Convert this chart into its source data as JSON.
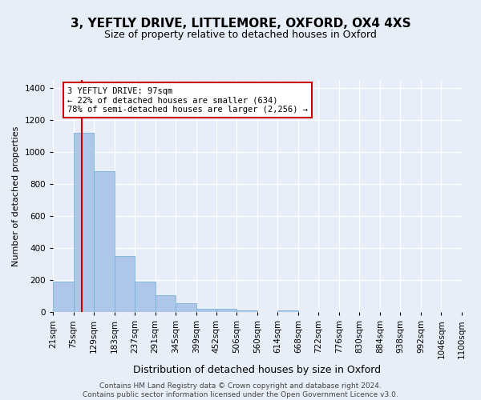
{
  "title": "3, YEFTLY DRIVE, LITTLEMORE, OXFORD, OX4 4XS",
  "subtitle": "Size of property relative to detached houses in Oxford",
  "xlabel": "Distribution of detached houses by size in Oxford",
  "ylabel": "Number of detached properties",
  "footer_line1": "Contains HM Land Registry data © Crown copyright and database right 2024.",
  "footer_line2": "Contains public sector information licensed under the Open Government Licence v3.0.",
  "bin_edges": [
    21,
    75,
    129,
    183,
    237,
    291,
    345,
    399,
    452,
    506,
    560,
    614,
    668,
    722,
    776,
    830,
    884,
    938,
    992,
    1046,
    1100
  ],
  "bar_heights": [
    190,
    1120,
    880,
    350,
    190,
    105,
    55,
    20,
    20,
    10,
    0,
    10,
    0,
    0,
    0,
    0,
    0,
    0,
    0,
    0
  ],
  "bar_color": "#aec6e8",
  "bar_edge_color": "#6baed6",
  "vline_x": 97,
  "vline_color": "#cc0000",
  "annotation_text": "3 YEFTLY DRIVE: 97sqm\n← 22% of detached houses are smaller (634)\n78% of semi-detached houses are larger (2,256) →",
  "annotation_box_color": "#ffffff",
  "annotation_box_edge": "#cc0000",
  "ylim": [
    0,
    1450
  ],
  "background_color": "#e8eef7",
  "grid_color": "#ffffff",
  "title_fontsize": 11,
  "subtitle_fontsize": 9,
  "xlabel_fontsize": 9,
  "ylabel_fontsize": 8,
  "tick_fontsize": 7.5,
  "footer_fontsize": 6.5
}
